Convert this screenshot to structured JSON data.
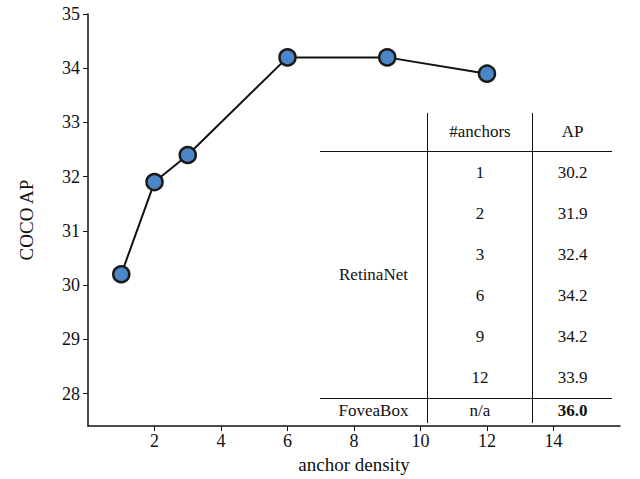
{
  "chart_data": {
    "type": "line",
    "x": [
      1,
      2,
      3,
      6,
      9,
      12
    ],
    "values": [
      30.2,
      31.9,
      32.4,
      34.2,
      34.2,
      33.9
    ],
    "xlabel": "anchor density",
    "ylabel": "COCO AP",
    "xlim": [
      0,
      16
    ],
    "xticks": [
      2,
      4,
      6,
      8,
      10,
      12,
      14
    ],
    "ylim": [
      27.4,
      35
    ],
    "yticks": [
      28,
      29,
      30,
      31,
      32,
      33,
      34,
      35
    ],
    "color": "#4a86c8",
    "marker": "circle",
    "line_style": "solid",
    "grid": false
  },
  "table": {
    "header": [
      "",
      "#anchors",
      "AP"
    ],
    "groups": [
      {
        "name": "RetinaNet",
        "rows": [
          [
            "1",
            "30.2"
          ],
          [
            "2",
            "31.9"
          ],
          [
            "3",
            "32.4"
          ],
          [
            "6",
            "34.2"
          ],
          [
            "9",
            "34.2"
          ],
          [
            "12",
            "33.9"
          ]
        ]
      },
      {
        "name": "FoveaBox",
        "rows": [
          [
            "n/a",
            "36.0"
          ]
        ]
      }
    ]
  }
}
